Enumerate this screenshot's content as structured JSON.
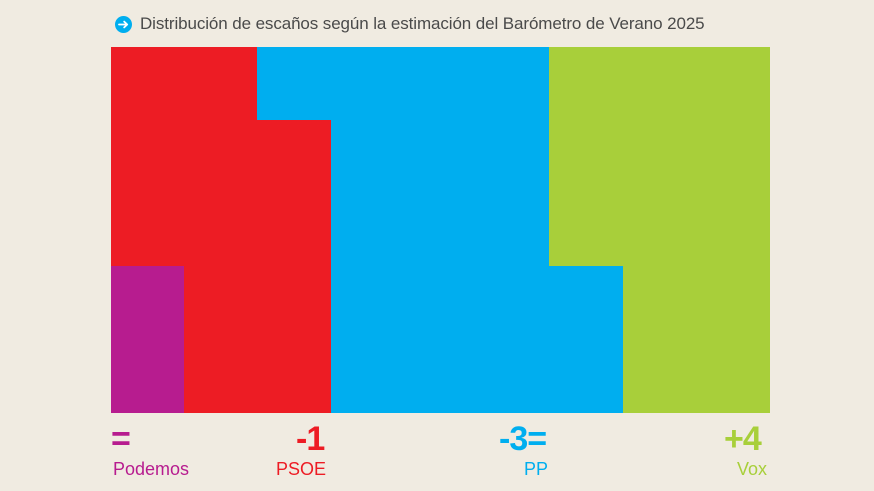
{
  "title": "Distribución de escaños según la estimación del Barómetro de Verano 2025",
  "icon_color": "#00aeef",
  "chart_data": {
    "type": "block-map",
    "title": "Distribución de escaños según la estimación del Barómetro de Verano 2025",
    "parties": [
      {
        "name": "Podemos",
        "change": "=",
        "color": "#b71c8f"
      },
      {
        "name": "PSOE",
        "change": "-1",
        "color": "#ed1c24"
      },
      {
        "name": "PP",
        "change": "-3=",
        "color": "#00aeef"
      },
      {
        "name": "Vox",
        "change": "+4",
        "color": "#a8cf3a"
      }
    ]
  }
}
